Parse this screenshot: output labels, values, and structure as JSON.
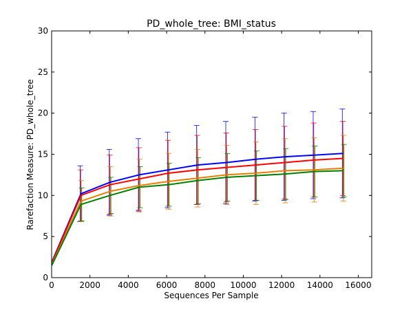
{
  "chart_data": {
    "type": "line",
    "title": "PD_whole_tree: BMI_status",
    "xlabel": "Sequences Per Sample",
    "ylabel": "Rarefaction Measure: PD_whole_tree",
    "xlim": [
      0,
      16700
    ],
    "ylim": [
      0,
      30
    ],
    "xticks": [
      0,
      2000,
      4000,
      6000,
      8000,
      10000,
      12000,
      14000,
      16000
    ],
    "yticks": [
      0,
      5,
      10,
      15,
      20,
      25,
      30
    ],
    "grid": false,
    "legend": "none",
    "x": [
      10,
      1530,
      3050,
      4570,
      6090,
      7610,
      9130,
      10650,
      12170,
      13690,
      15210
    ],
    "series": [
      {
        "color": "#0000ff",
        "values": [
          1.9,
          10.2,
          11.6,
          12.5,
          13.1,
          13.7,
          14.0,
          14.4,
          14.7,
          14.9,
          15.1
        ],
        "err": [
          0.2,
          3.4,
          4.0,
          4.4,
          4.6,
          4.8,
          5.0,
          5.1,
          5.3,
          5.3,
          5.4
        ]
      },
      {
        "color": "#ff0000",
        "values": [
          1.8,
          10.0,
          11.3,
          12.0,
          12.7,
          13.1,
          13.4,
          13.7,
          14.0,
          14.3,
          14.5
        ],
        "err": [
          0.2,
          3.1,
          3.6,
          3.8,
          4.0,
          4.2,
          4.2,
          4.3,
          4.4,
          4.5,
          4.5
        ]
      },
      {
        "color": "#e67e00",
        "values": [
          1.6,
          9.3,
          10.5,
          11.2,
          11.7,
          12.1,
          12.5,
          12.7,
          13.0,
          13.1,
          13.3
        ],
        "err": [
          0.2,
          2.5,
          3.0,
          3.2,
          3.4,
          3.5,
          3.6,
          3.8,
          3.9,
          3.9,
          4.0
        ]
      },
      {
        "color": "#008000",
        "values": [
          1.5,
          8.9,
          10.0,
          11.0,
          11.3,
          11.8,
          12.2,
          12.4,
          12.6,
          12.9,
          13.0
        ],
        "err": [
          0.2,
          2.0,
          2.2,
          2.5,
          2.6,
          2.8,
          2.9,
          3.0,
          3.1,
          3.1,
          3.2
        ]
      }
    ]
  }
}
